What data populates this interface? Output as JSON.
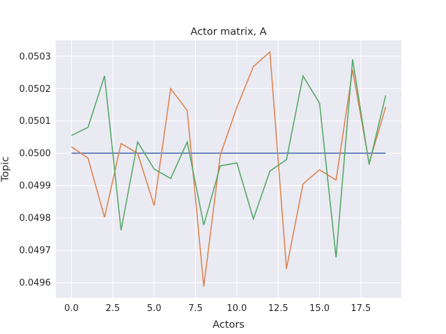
{
  "chart_data": {
    "type": "line",
    "title": "Actor matrix, A",
    "xlabel": "Actors",
    "ylabel": "Topic",
    "xlim": [
      -0.95,
      19.95
    ],
    "ylim": [
      0.049553,
      0.050349
    ],
    "xticks": [
      0.0,
      2.5,
      5.0,
      7.5,
      10.0,
      12.5,
      15.0,
      17.5
    ],
    "xtick_labels": [
      "0.0",
      "2.5",
      "5.0",
      "7.5",
      "10.0",
      "12.5",
      "15.0",
      "17.5"
    ],
    "yticks": [
      0.0496,
      0.0497,
      0.0498,
      0.0499,
      0.05,
      0.0501,
      0.0502,
      0.0503
    ],
    "ytick_labels": [
      "0.0496",
      "0.0497",
      "0.0498",
      "0.0499",
      "0.0500",
      "0.0501",
      "0.0502",
      "0.0503"
    ],
    "grid": true,
    "x": [
      0,
      1,
      2,
      3,
      4,
      5,
      6,
      7,
      8,
      9,
      10,
      11,
      12,
      13,
      14,
      15,
      16,
      17,
      18,
      19
    ],
    "series": [
      {
        "color": "#4c72b0",
        "values": [
          0.05,
          0.05,
          0.05,
          0.05,
          0.05,
          0.05,
          0.05,
          0.05,
          0.05,
          0.05,
          0.05,
          0.05,
          0.05,
          0.05,
          0.05,
          0.05,
          0.05,
          0.05,
          0.05,
          0.05
        ]
      },
      {
        "color": "#dd8452",
        "values": [
          0.05002,
          0.049985,
          0.049802,
          0.05003,
          0.05,
          0.049838,
          0.0502,
          0.050132,
          0.049588,
          0.049995,
          0.050142,
          0.050268,
          0.050313,
          0.049643,
          0.049905,
          0.049949,
          0.049917,
          0.050258,
          0.049969,
          0.050143
        ]
      },
      {
        "color": "#55a868",
        "values": [
          0.050055,
          0.05008,
          0.050239,
          0.049762,
          0.050035,
          0.049951,
          0.049922,
          0.050035,
          0.049778,
          0.049961,
          0.04997,
          0.049797,
          0.049945,
          0.04998,
          0.050239,
          0.050155,
          0.049678,
          0.05029,
          0.049965,
          0.050179
        ]
      }
    ]
  }
}
